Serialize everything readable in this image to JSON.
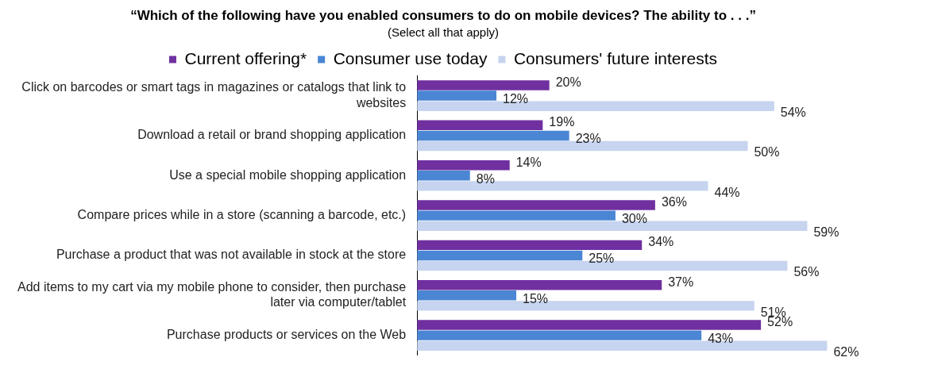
{
  "chart_data": {
    "type": "bar",
    "orientation": "horizontal",
    "title": "“Which of the following have you enabled consumers to do on mobile devices? The ability to . . .”",
    "subtitle": "(Select all that apply)",
    "categories": [
      "Click on barcodes or smart tags in magazines or catalogs that link to websites",
      "Download a retail or brand shopping application",
      "Use a special mobile shopping application",
      "Compare prices while in a store (scanning a barcode, etc.)",
      "Purchase a product that was not available in stock at the store",
      "Add items to my cart via my mobile phone to consider, then purchase later via computer/tablet",
      "Purchase products or services on the Web"
    ],
    "series": [
      {
        "name": "Current offering*",
        "color": "#7030a0",
        "values": [
          20,
          19,
          14,
          36,
          34,
          37,
          52
        ],
        "value_labels": [
          "20%",
          "19%",
          "14%",
          "36%",
          "34%",
          "37%",
          "52%"
        ]
      },
      {
        "name": "Consumer use today",
        "color": "#4a86d4",
        "values": [
          12,
          23,
          8,
          30,
          25,
          15,
          43
        ],
        "value_labels": [
          "12%",
          "23%",
          "8%",
          "30%",
          "25%",
          "15%",
          "43%"
        ]
      },
      {
        "name": "Consumers' future interests",
        "color": "#c6d4ef",
        "values": [
          54,
          50,
          44,
          59,
          56,
          51,
          62
        ],
        "value_labels": [
          "54%",
          "50%",
          "44%",
          "59%",
          "56%",
          "51%",
          "62%"
        ]
      }
    ],
    "legend": "top",
    "grid": false
  }
}
